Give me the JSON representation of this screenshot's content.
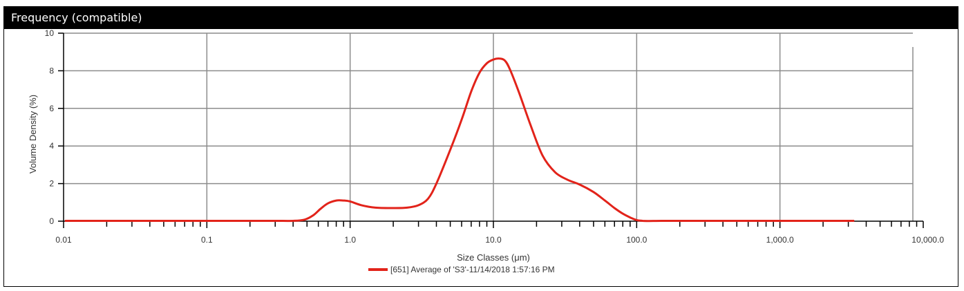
{
  "panel": {
    "title": "Frequency (compatible)"
  },
  "colors": {
    "series": "#e2231a",
    "grid": "#8c8c8c",
    "axis": "#000000",
    "titlebar": "#000000"
  },
  "chart_data": {
    "type": "line",
    "xscale": "log",
    "xlabel": "Size Classes (μm)",
    "ylabel": "Volume Density (%)",
    "xlim": [
      0.01,
      10000
    ],
    "ylim": [
      0,
      10
    ],
    "grid": true,
    "legend_position": "bottom-center",
    "x_tick_labels": [
      "0.01",
      "0.1",
      "1.0",
      "10.0",
      "100.0",
      "1,000.0",
      "10,000.0"
    ],
    "y_tick_labels": [
      "0",
      "2",
      "4",
      "6",
      "8",
      "10"
    ],
    "series": [
      {
        "name": "[651] Average of 'S3'-11/14/2018 1:57:16 PM",
        "x": [
          0.0102,
          0.02,
          0.05,
          0.1,
          0.2,
          0.3,
          0.4,
          0.48,
          0.55,
          0.62,
          0.7,
          0.8,
          0.9,
          1.0,
          1.2,
          1.5,
          2.0,
          2.5,
          3.0,
          3.5,
          4.0,
          5.0,
          6.0,
          7.0,
          8.0,
          9.0,
          10.0,
          11.0,
          12.0,
          13.0,
          15.0,
          18.0,
          22.0,
          27.0,
          33.0,
          40.0,
          50.0,
          60.0,
          70.0,
          80.0,
          90.0,
          100.0,
          110.0,
          120.0,
          150.0,
          200.0,
          500.0,
          1000.0,
          2000.0,
          3300.0
        ],
        "y": [
          0.02,
          0.02,
          0.02,
          0.02,
          0.02,
          0.02,
          0.02,
          0.08,
          0.3,
          0.65,
          0.95,
          1.1,
          1.1,
          1.05,
          0.85,
          0.72,
          0.7,
          0.72,
          0.85,
          1.2,
          2.0,
          3.8,
          5.4,
          6.9,
          7.9,
          8.4,
          8.6,
          8.65,
          8.55,
          8.1,
          6.9,
          5.2,
          3.5,
          2.6,
          2.2,
          1.95,
          1.55,
          1.1,
          0.7,
          0.4,
          0.2,
          0.06,
          0.02,
          0.01,
          0.02,
          0.02,
          0.02,
          0.02,
          0.02,
          0.02
        ]
      }
    ]
  }
}
